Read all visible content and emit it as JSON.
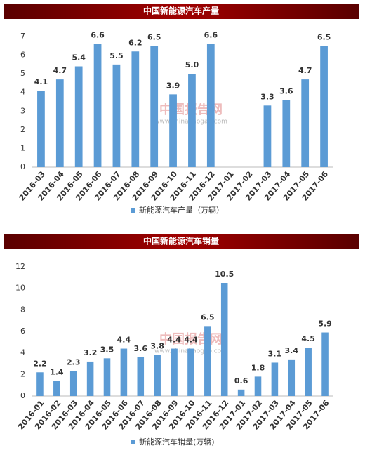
{
  "chart_data": [
    {
      "type": "bar",
      "title": "中国新能源汽车产量",
      "legend": "新能源汽车产量（万辆）",
      "watermark": "中国报告网",
      "watermark_url": "www.chinabaogao.com",
      "categories": [
        "2016-03",
        "2016-04",
        "2016-05",
        "2016-06",
        "2016-07",
        "2016-08",
        "2016-09",
        "2016-10",
        "2016-11",
        "2016-12",
        "2017-01",
        "2017-02",
        "2017-03",
        "2017-04",
        "2017-05",
        "2017-06"
      ],
      "values": [
        4.1,
        4.7,
        5.4,
        6.6,
        5.5,
        6.2,
        6.5,
        3.9,
        5.0,
        6.6,
        null,
        null,
        3.3,
        3.6,
        4.7,
        6.5
      ],
      "value_labels": [
        "4.1",
        "4.7",
        "5.4",
        "6.6",
        "5.5",
        "6.2",
        "6.5",
        "3.9",
        "5.0",
        "6.6",
        null,
        null,
        "3.3",
        "3.6",
        "4.7",
        "6.5"
      ],
      "color": "#5b9bd5",
      "ylim": [
        0,
        7
      ],
      "yticks": [
        0,
        1,
        2,
        3,
        4,
        5,
        6,
        7
      ]
    },
    {
      "type": "bar",
      "title": "中国新能源汽车销量",
      "legend": "新能源汽车销量(万辆)",
      "watermark": "中国报告网",
      "watermark_url": "www.chinabaogao.com",
      "categories": [
        "2016-01",
        "2016-02",
        "2016-03",
        "2016-04",
        "2016-05",
        "2016-06",
        "2016-07",
        "2016-08",
        "2016-09",
        "2016-10",
        "2016-11",
        "2016-12",
        "2017-01",
        "2017-02",
        "2017-03",
        "2017-04",
        "2017-05",
        "2017-06"
      ],
      "values": [
        2.2,
        1.4,
        2.3,
        3.2,
        3.5,
        4.4,
        3.6,
        3.8,
        4.4,
        4.4,
        6.5,
        10.5,
        0.6,
        1.8,
        3.1,
        3.4,
        4.5,
        5.9
      ],
      "color": "#5b9bd5",
      "ylim": [
        0,
        12
      ],
      "yticks": [
        0,
        2,
        4,
        6,
        8,
        10,
        12
      ]
    }
  ]
}
